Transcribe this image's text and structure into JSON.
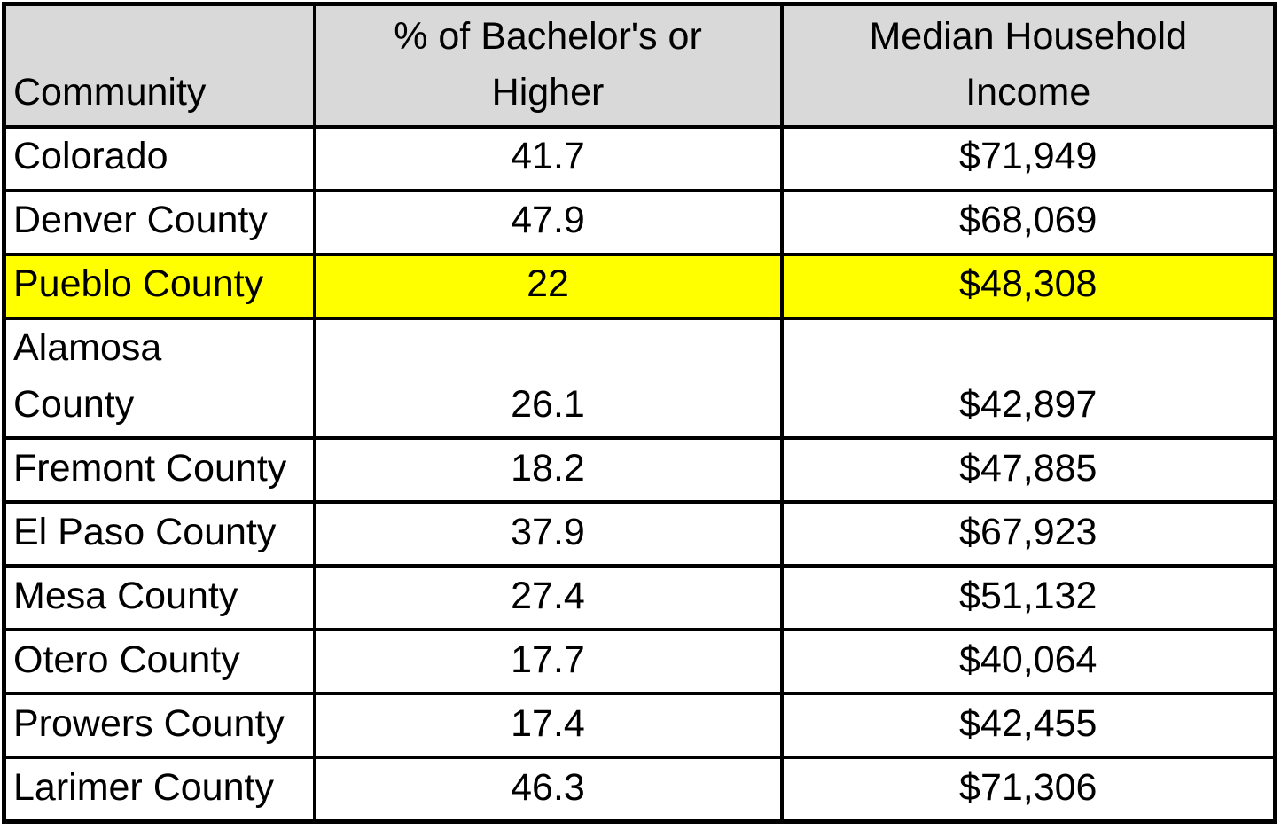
{
  "table": {
    "columns": [
      "Community",
      "% of Bachelor's or\nHigher",
      "Median Household\nIncome"
    ],
    "rows": [
      {
        "community": "Colorado",
        "bachelors": "41.7",
        "income": "$71,949",
        "highlight": false
      },
      {
        "community": "Denver County",
        "bachelors": "47.9",
        "income": "$68,069",
        "highlight": false
      },
      {
        "community": "Pueblo County",
        "bachelors": "22",
        "income": "$48,308",
        "highlight": true
      },
      {
        "community": "Alamosa\nCounty",
        "bachelors": "26.1",
        "income": "$42,897",
        "highlight": false
      },
      {
        "community": "Fremont County",
        "bachelors": "18.2",
        "income": "$47,885",
        "highlight": false
      },
      {
        "community": "El Paso County",
        "bachelors": "37.9",
        "income": "$67,923",
        "highlight": false
      },
      {
        "community": "Mesa County",
        "bachelors": "27.4",
        "income": "$51,132",
        "highlight": false
      },
      {
        "community": "Otero County",
        "bachelors": "17.7",
        "income": "$40,064",
        "highlight": false
      },
      {
        "community": "Prowers County",
        "bachelors": "17.4",
        "income": "$42,455",
        "highlight": false
      },
      {
        "community": "Larimer County",
        "bachelors": "46.3",
        "income": "$71,306",
        "highlight": false
      }
    ]
  },
  "colors": {
    "header_bg": "#d9d9d9",
    "highlight_bg": "#ffff00",
    "border": "#000000"
  },
  "chart_data": {
    "type": "table",
    "title": "",
    "categories": [
      "Colorado",
      "Denver County",
      "Pueblo County",
      "Alamosa County",
      "Fremont County",
      "El Paso County",
      "Mesa County",
      "Otero County",
      "Prowers County",
      "Larimer County"
    ],
    "series": [
      {
        "name": "% of Bachelor's or Higher",
        "values": [
          41.7,
          47.9,
          22,
          26.1,
          18.2,
          37.9,
          27.4,
          17.7,
          17.4,
          46.3
        ]
      },
      {
        "name": "Median Household Income",
        "values": [
          71949,
          68069,
          48308,
          42897,
          47885,
          67923,
          51132,
          40064,
          42455,
          71306
        ]
      }
    ],
    "highlighted_row": "Pueblo County",
    "layout": {
      "header_fill": "#d9d9d9",
      "highlight_fill": "#ffff00",
      "grid": "on"
    }
  }
}
